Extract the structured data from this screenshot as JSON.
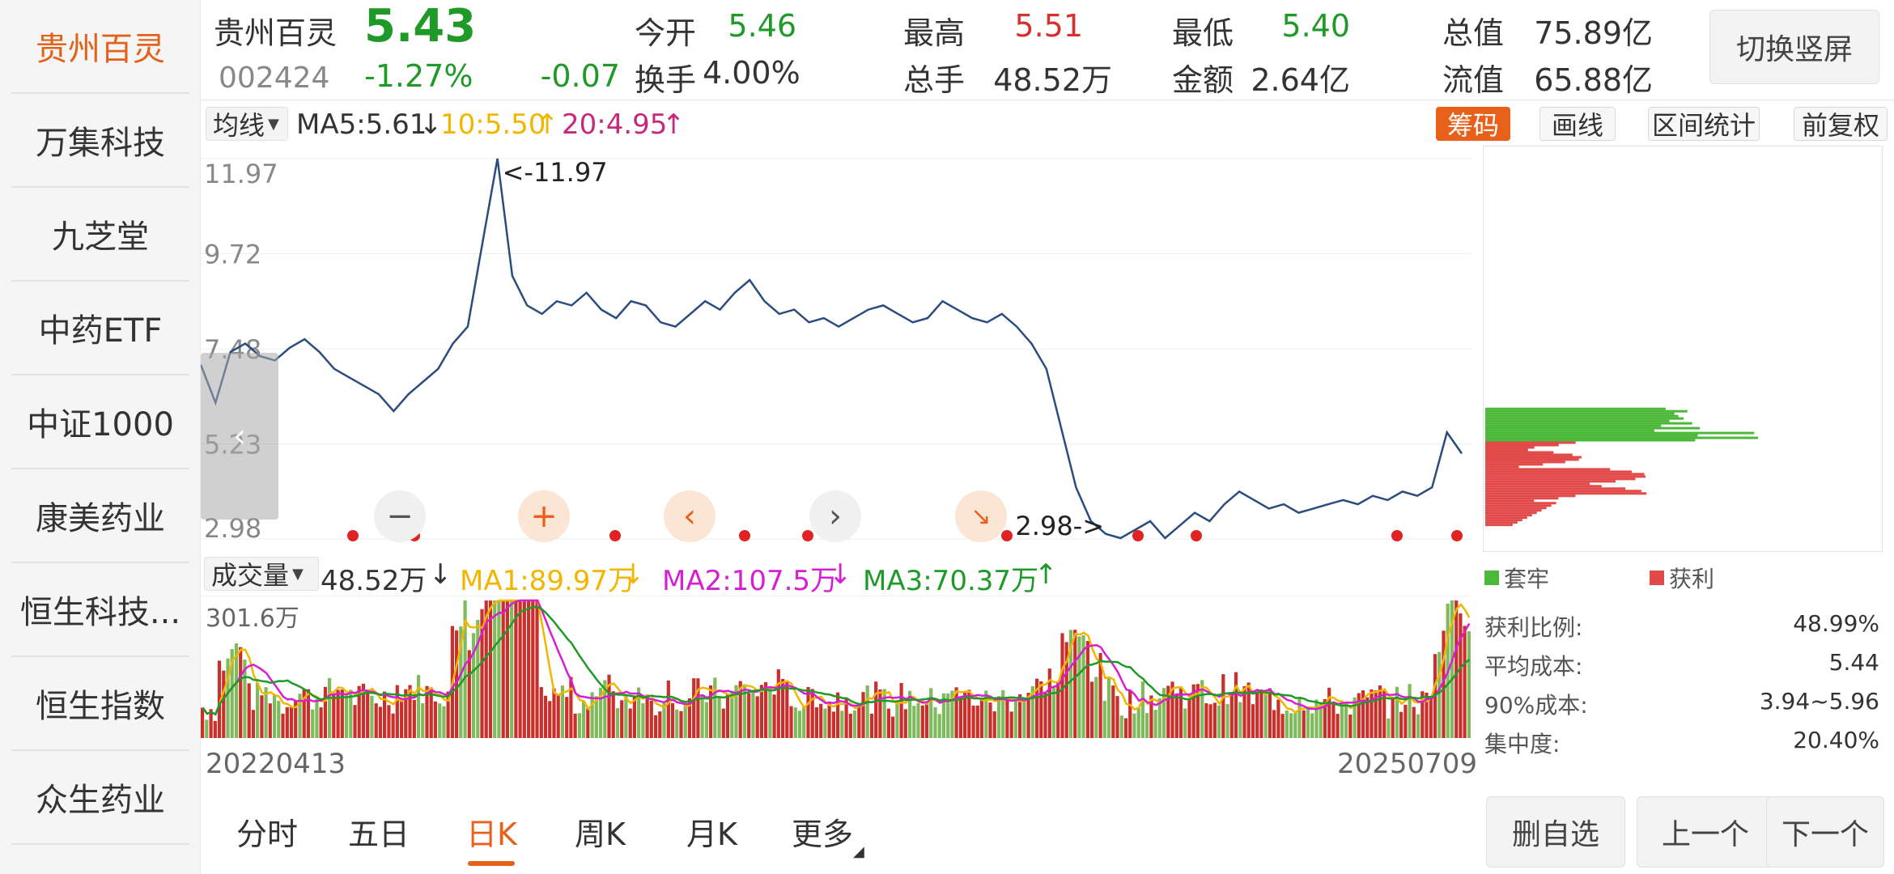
{
  "sidebar": {
    "items": [
      {
        "label": "贵州百灵",
        "active": true
      },
      {
        "label": "万集科技"
      },
      {
        "label": "九芝堂"
      },
      {
        "label": "中药ETF"
      },
      {
        "label": "中证1000"
      },
      {
        "label": "康美药业"
      },
      {
        "label": "恒生科技..."
      },
      {
        "label": "恒生指数"
      },
      {
        "label": "众生药业"
      }
    ]
  },
  "quote": {
    "name": "贵州百灵",
    "code": "002424",
    "price": "5.43",
    "pct": "-1.27%",
    "change": "-0.07",
    "open_label": "今开",
    "open": "5.46",
    "high_label": "最高",
    "high": "5.51",
    "low_label": "最低",
    "low": "5.40",
    "mktcap_label": "总值",
    "mktcap": "75.89亿",
    "turnover_label": "换手",
    "turnover": "4.00%",
    "volume_label": "总手",
    "volume": "48.52万",
    "amount_label": "金额",
    "amount": "2.64亿",
    "float_label": "流值",
    "float": "65.88亿",
    "switch_label": "切换竖屏"
  },
  "ma_legend": {
    "selector": "均线",
    "ma5": "MA5:5.61",
    "ma5_arrow": "↓",
    "ma10": "10:5.50",
    "ma10_arrow": "↑",
    "ma20": "20:4.95",
    "ma20_arrow": "↑"
  },
  "tools": {
    "chips": "筹码",
    "draw": "画线",
    "range_stats": "区间统计",
    "adjust": "前复权"
  },
  "volume_legend": {
    "selector": "成交量",
    "vol": "48.52万",
    "vol_arrow": "↓",
    "ma1": "MA1:89.97万",
    "ma1_arrow": "↓",
    "ma2": "MA2:107.5万",
    "ma2_arrow": "↓",
    "ma3": "MA3:70.37万",
    "ma3_arrow": "↑"
  },
  "chart_data": {
    "type": "line",
    "y_ticks": [
      "11.97",
      "9.72",
      "7.48",
      "5.23",
      "2.98"
    ],
    "ylim": [
      2.98,
      11.97
    ],
    "annotations": {
      "max": "<-11.97",
      "min": "2.98->"
    },
    "series": [
      {
        "values": [
          7.1,
          6.2,
          7.4,
          7.6,
          7.3,
          7.2,
          7.5,
          7.7,
          7.4,
          7.0,
          6.8,
          6.6,
          6.4,
          6.0,
          6.4,
          6.7,
          7.0,
          7.6,
          8.0,
          10.0,
          11.97,
          9.2,
          8.5,
          8.3,
          8.6,
          8.5,
          8.8,
          8.4,
          8.2,
          8.6,
          8.5,
          8.1,
          8.0,
          8.3,
          8.6,
          8.4,
          8.8,
          9.1,
          8.6,
          8.3,
          8.4,
          8.1,
          8.2,
          8.0,
          8.2,
          8.4,
          8.5,
          8.3,
          8.1,
          8.2,
          8.6,
          8.4,
          8.2,
          8.1,
          8.3,
          8.0,
          7.6,
          7.0,
          5.6,
          4.2,
          3.4,
          3.1,
          3.0,
          3.2,
          3.4,
          3.0,
          3.3,
          3.6,
          3.4,
          3.8,
          4.1,
          3.9,
          3.7,
          3.8,
          3.6,
          3.7,
          3.8,
          3.9,
          3.8,
          4.0,
          3.9,
          4.1,
          4.0,
          4.2,
          5.5,
          5.0
        ]
      }
    ]
  },
  "volume_axis": {
    "top": "301.6万"
  },
  "dates": {
    "start": "20220413",
    "end": "20250709"
  },
  "chips_panel": {
    "legend_trapped": "套牢",
    "legend_profit": "获利",
    "stats": [
      {
        "label": "获利比例:",
        "value": "48.99%"
      },
      {
        "label": "平均成本:",
        "value": "5.44"
      },
      {
        "label": "90%成本:",
        "value": "3.94~5.96"
      },
      {
        "label": "集中度:",
        "value": "20.40%"
      }
    ]
  },
  "period_tabs": [
    {
      "label": "分时"
    },
    {
      "label": "五日"
    },
    {
      "label": "日K",
      "active": true
    },
    {
      "label": "周K"
    },
    {
      "label": "月K"
    },
    {
      "label": "更多"
    }
  ],
  "actions": {
    "remove_watch": "删自选",
    "prev": "上一个",
    "next": "下一个"
  },
  "colors": {
    "accent": "#e8611b",
    "up": "#d63131",
    "down": "#1f9a28",
    "price_line": "#2b4c7e",
    "ma10": "#f2b600",
    "ma20": "#c8287c",
    "ma3": "#1f9a28"
  }
}
